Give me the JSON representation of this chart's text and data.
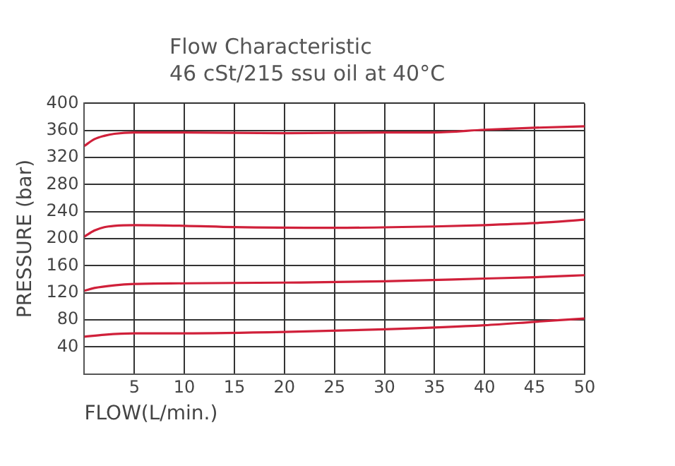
{
  "chart_data": {
    "type": "line",
    "title": "Flow Characteristic",
    "subtitle": "46 cSt/215 ssu oil at 40°C",
    "xlabel": "FLOW(L/min.)",
    "ylabel": "PRESSURE (bar)",
    "xlim": [
      0,
      50
    ],
    "xticks": [
      {
        "value": 0,
        "label": null
      },
      5,
      10,
      15,
      20,
      25,
      30,
      35,
      40,
      45,
      50
    ],
    "ylim": [
      0,
      400
    ],
    "yticks": [
      {
        "value": 0,
        "label": null
      },
      40,
      80,
      120,
      160,
      200,
      240,
      280,
      320,
      360,
      400
    ],
    "grid": true,
    "legend": false,
    "marker": "none",
    "line_style": "solid",
    "series": [
      {
        "color": "#d0203a",
        "x": [
          0,
          1,
          2,
          3,
          5,
          10,
          20,
          30,
          35,
          40,
          45,
          50
        ],
        "values": [
          337,
          347,
          352,
          355,
          357,
          357,
          356,
          357,
          357,
          361,
          364,
          366
        ]
      },
      {
        "color": "#d0203a",
        "x": [
          0,
          1,
          2,
          3,
          5,
          10,
          15,
          25,
          35,
          40,
          45,
          50
        ],
        "values": [
          203,
          212,
          217,
          219,
          220,
          219,
          217,
          216,
          218,
          220,
          223,
          228
        ]
      },
      {
        "color": "#d0203a",
        "x": [
          0,
          1,
          3,
          5,
          10,
          20,
          30,
          40,
          45,
          50
        ],
        "values": [
          123,
          127,
          131,
          133,
          134,
          135,
          137,
          141,
          143,
          146
        ]
      },
      {
        "color": "#d0203a",
        "x": [
          0,
          2,
          5,
          10,
          20,
          30,
          40,
          45,
          50
        ],
        "values": [
          55,
          58,
          60,
          60,
          62,
          66,
          72,
          77,
          82
        ]
      }
    ]
  }
}
